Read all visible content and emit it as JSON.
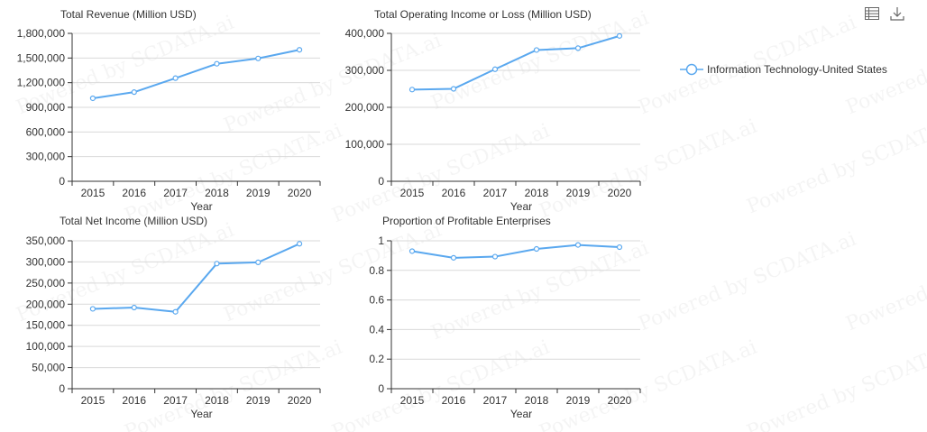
{
  "legend": {
    "series_name": "Information Technology-United States"
  },
  "toolbar": {
    "data_view_icon": "data-view-icon",
    "download_icon": "download-icon"
  },
  "watermark": "Powered by SCDATA.ai",
  "colors": {
    "series": "#5aa8ef",
    "axis": "#333333",
    "grid": "#d9d9d9"
  },
  "chart_data": [
    {
      "type": "line",
      "title": "Total Revenue (Million USD)",
      "xlabel": "Year",
      "ylabel": "",
      "categories": [
        "2015",
        "2016",
        "2017",
        "2018",
        "2019",
        "2020"
      ],
      "series": [
        {
          "name": "Information Technology-United States",
          "values": [
            1010000,
            1085000,
            1255000,
            1430000,
            1495000,
            1600000
          ]
        }
      ],
      "ylim": [
        0,
        1800000
      ],
      "yticks": [
        0,
        300000,
        600000,
        900000,
        1200000,
        1500000,
        1800000
      ],
      "ytick_labels": [
        "0",
        "300,000",
        "600,000",
        "900,000",
        "1,200,000",
        "1,500,000",
        "1,800,000"
      ],
      "grid": true
    },
    {
      "type": "line",
      "title": "Total Operating Income or Loss (Million USD)",
      "xlabel": "Year",
      "ylabel": "",
      "categories": [
        "2015",
        "2016",
        "2017",
        "2018",
        "2019",
        "2020"
      ],
      "series": [
        {
          "name": "Information Technology-United States",
          "values": [
            248000,
            250000,
            303000,
            355000,
            360000,
            393000
          ]
        }
      ],
      "ylim": [
        0,
        400000
      ],
      "yticks": [
        0,
        100000,
        200000,
        300000,
        400000
      ],
      "ytick_labels": [
        "0",
        "100,000",
        "200,000",
        "300,000",
        "400,000"
      ],
      "grid": true
    },
    {
      "type": "line",
      "title": "Total Net Income (Million USD)",
      "xlabel": "Year",
      "ylabel": "",
      "categories": [
        "2015",
        "2016",
        "2017",
        "2018",
        "2019",
        "2020"
      ],
      "series": [
        {
          "name": "Information Technology-United States",
          "values": [
            189000,
            192000,
            182000,
            296000,
            299000,
            343000
          ]
        }
      ],
      "ylim": [
        0,
        350000
      ],
      "yticks": [
        0,
        50000,
        100000,
        150000,
        200000,
        250000,
        300000,
        350000
      ],
      "ytick_labels": [
        "0",
        "50,000",
        "100,000",
        "150,000",
        "200,000",
        "250,000",
        "300,000",
        "350,000"
      ],
      "grid": true
    },
    {
      "type": "line",
      "title": "Proportion of Profitable Enterprises",
      "xlabel": "Year",
      "ylabel": "",
      "categories": [
        "2015",
        "2016",
        "2017",
        "2018",
        "2019",
        "2020"
      ],
      "series": [
        {
          "name": "Information Technology-United States",
          "values": [
            0.93,
            0.885,
            0.893,
            0.945,
            0.972,
            0.957
          ]
        }
      ],
      "ylim": [
        0,
        1
      ],
      "yticks": [
        0,
        0.2,
        0.4,
        0.6,
        0.8,
        1
      ],
      "ytick_labels": [
        "0",
        "0.2",
        "0.4",
        "0.6",
        "0.8",
        "1"
      ],
      "grid": true
    }
  ]
}
